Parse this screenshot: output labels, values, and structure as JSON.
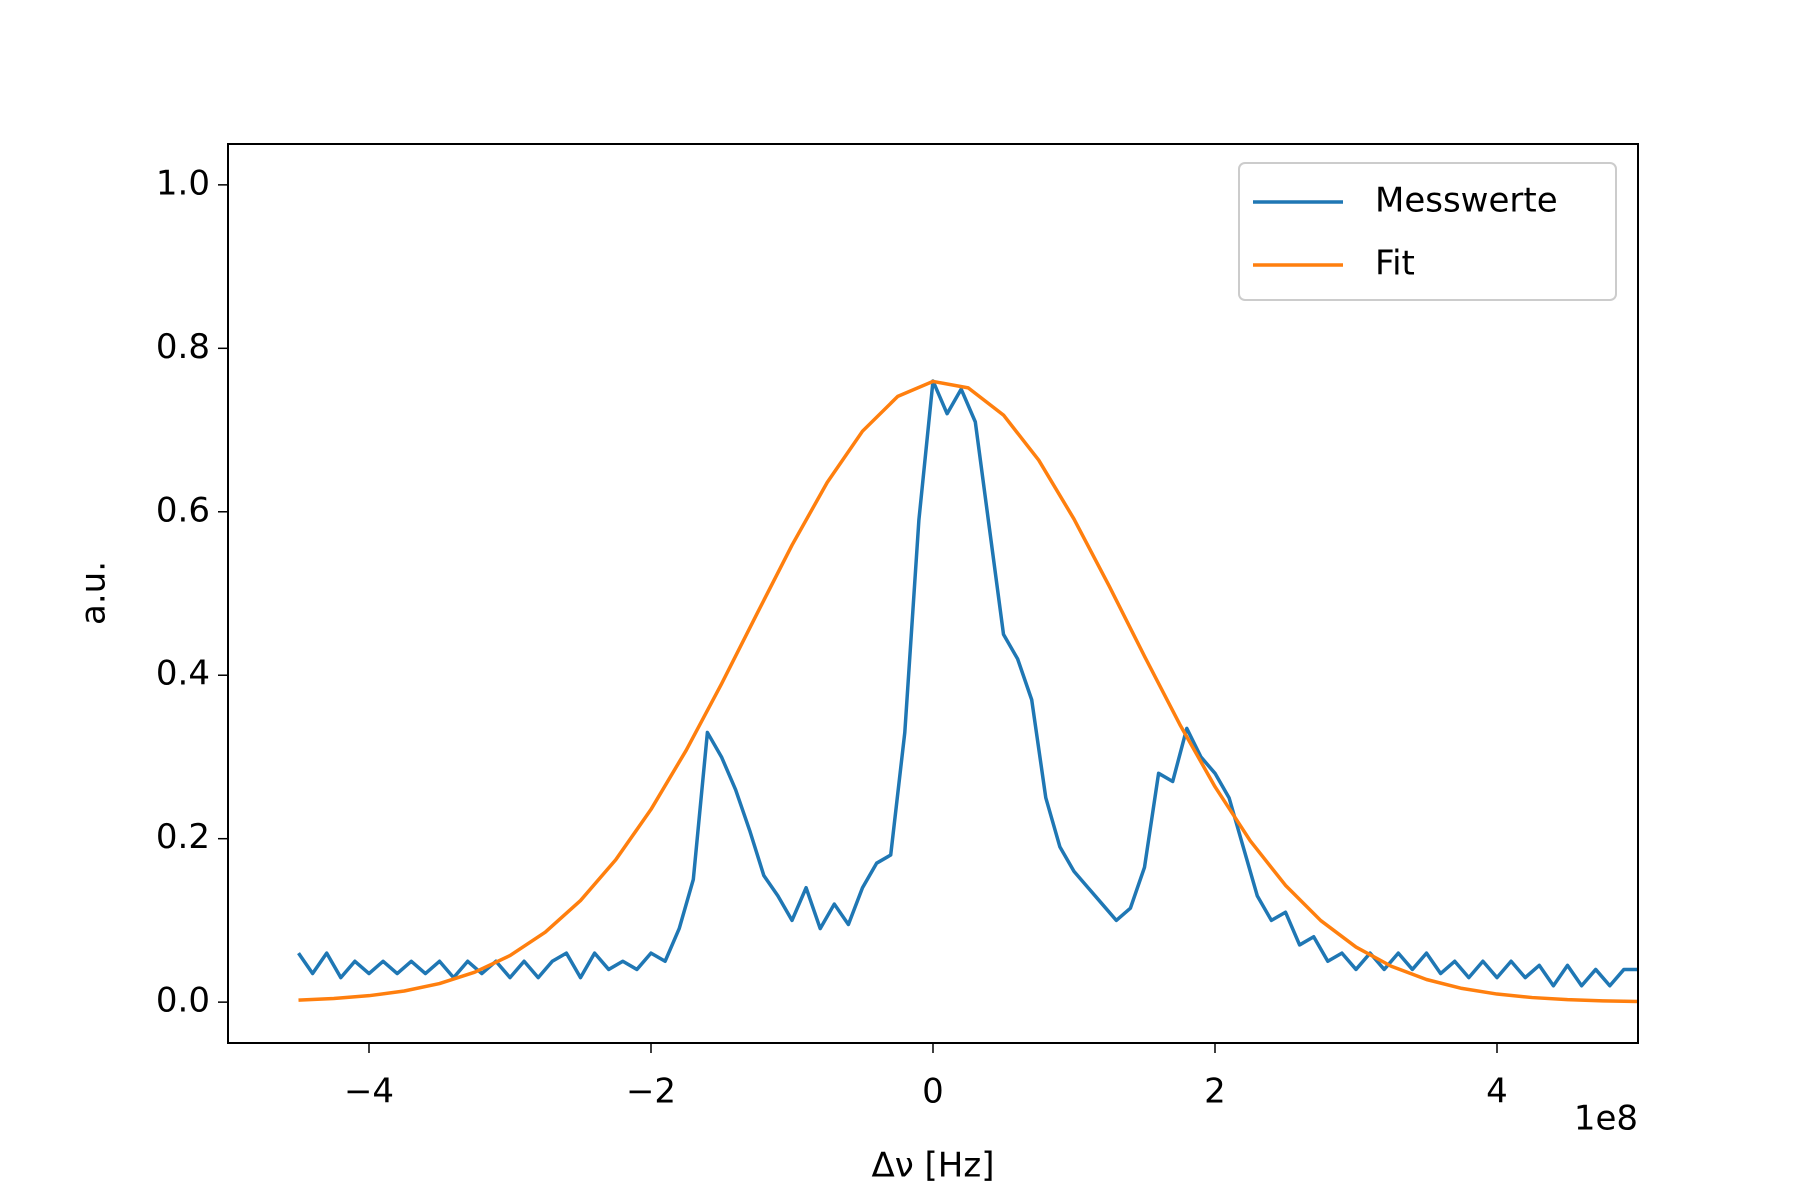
{
  "chart_data": {
    "type": "line",
    "xlabel": "Δν [Hz]",
    "ylabel": "a.u.",
    "x_offset_label": "1e8",
    "xlim": [
      -5,
      5
    ],
    "ylim": [
      -0.05,
      1.05
    ],
    "xticks": [
      {
        "value": -4,
        "label": "−4"
      },
      {
        "value": -2,
        "label": "−2"
      },
      0,
      2,
      4
    ],
    "yticks": [
      {
        "value": 0,
        "label": "0.0"
      },
      0.2,
      0.4,
      0.6,
      0.8,
      {
        "value": 1,
        "label": "1.0"
      }
    ],
    "legend": "upper right",
    "series": [
      {
        "name": "Messwerte",
        "color": "#1f77b4",
        "x": [
          -4.5,
          -4.4,
          -4.3,
          -4.2,
          -4.1,
          -4.0,
          -3.9,
          -3.8,
          -3.7,
          -3.6,
          -3.5,
          -3.4,
          -3.3,
          -3.2,
          -3.1,
          -3.0,
          -2.9,
          -2.8,
          -2.7,
          -2.6,
          -2.5,
          -2.4,
          -2.3,
          -2.2,
          -2.1,
          -2.0,
          -1.9,
          -1.8,
          -1.7,
          -1.6,
          -1.5,
          -1.4,
          -1.3,
          -1.2,
          -1.1,
          -1.0,
          -0.9,
          -0.8,
          -0.7,
          -0.6,
          -0.5,
          -0.4,
          -0.3,
          -0.2,
          -0.1,
          0.0,
          0.1,
          0.2,
          0.3,
          0.4,
          0.5,
          0.6,
          0.7,
          0.8,
          0.9,
          1.0,
          1.1,
          1.2,
          1.3,
          1.4,
          1.5,
          1.6,
          1.7,
          1.8,
          1.9,
          2.0,
          2.1,
          2.2,
          2.3,
          2.4,
          2.5,
          2.6,
          2.7,
          2.8,
          2.9,
          3.0,
          3.1,
          3.2,
          3.3,
          3.4,
          3.5,
          3.6,
          3.7,
          3.8,
          3.9,
          4.0,
          4.1,
          4.2,
          4.3,
          4.4,
          4.5,
          4.6,
          4.7,
          4.8,
          4.9,
          5.0
        ],
        "values": [
          0.06,
          0.035,
          0.06,
          0.03,
          0.05,
          0.035,
          0.05,
          0.035,
          0.05,
          0.035,
          0.05,
          0.03,
          0.05,
          0.035,
          0.05,
          0.03,
          0.05,
          0.03,
          0.05,
          0.06,
          0.03,
          0.06,
          0.04,
          0.05,
          0.04,
          0.06,
          0.05,
          0.09,
          0.15,
          0.33,
          0.3,
          0.26,
          0.21,
          0.155,
          0.13,
          0.1,
          0.14,
          0.09,
          0.12,
          0.095,
          0.14,
          0.17,
          0.18,
          0.33,
          0.59,
          0.76,
          0.72,
          0.75,
          0.71,
          0.58,
          0.45,
          0.42,
          0.37,
          0.25,
          0.19,
          0.16,
          0.14,
          0.12,
          0.1,
          0.115,
          0.165,
          0.28,
          0.27,
          0.335,
          0.3,
          0.28,
          0.25,
          0.19,
          0.13,
          0.1,
          0.11,
          0.07,
          0.08,
          0.05,
          0.06,
          0.04,
          0.06,
          0.04,
          0.06,
          0.04,
          0.06,
          0.035,
          0.05,
          0.03,
          0.05,
          0.03,
          0.05,
          0.03,
          0.045,
          0.02,
          0.045,
          0.02,
          0.04,
          0.02,
          0.04,
          0.04
        ]
      },
      {
        "name": "Fit",
        "color": "#ff7f0e",
        "x": [
          -4.5,
          -4.25,
          -4.0,
          -3.75,
          -3.5,
          -3.25,
          -3.0,
          -2.75,
          -2.5,
          -2.25,
          -2.0,
          -1.75,
          -1.5,
          -1.25,
          -1.0,
          -0.75,
          -0.5,
          -0.25,
          0,
          0.25,
          0.5,
          0.75,
          1.0,
          1.25,
          1.5,
          1.75,
          2.0,
          2.25,
          2.5,
          2.75,
          3.0,
          3.25,
          3.5,
          3.75,
          4.0,
          4.25,
          4.5,
          4.75,
          5.0
        ],
        "values": [
          0.0024,
          0.0044,
          0.0079,
          0.0136,
          0.0227,
          0.0366,
          0.057,
          0.0856,
          0.1243,
          0.1742,
          0.2358,
          0.3083,
          0.3893,
          0.4747,
          0.5591,
          0.636,
          0.6986,
          0.7412,
          0.7595,
          0.7516,
          0.7183,
          0.6631,
          0.5911,
          0.509,
          0.4232,
          0.3399,
          0.2636,
          0.1974,
          0.1429,
          0.0998,
          0.0674,
          0.0439,
          0.0277,
          0.0168,
          0.0099,
          0.0056,
          0.0031,
          0.0016,
          0.0008
        ]
      }
    ]
  }
}
